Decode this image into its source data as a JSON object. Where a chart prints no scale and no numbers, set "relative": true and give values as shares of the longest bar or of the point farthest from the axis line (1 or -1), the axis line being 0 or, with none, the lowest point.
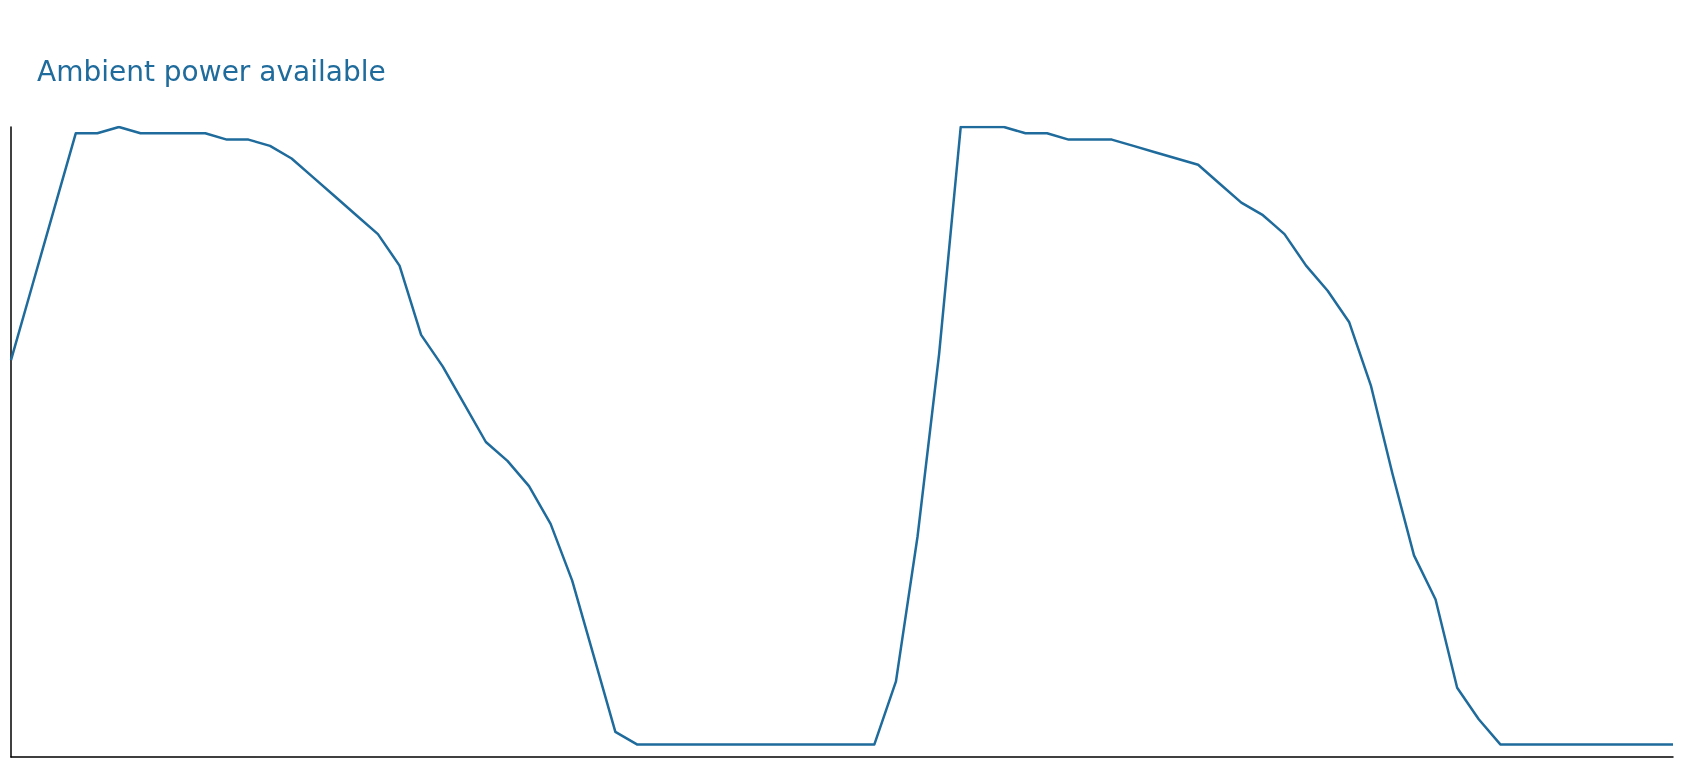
{
  "chart_data": {
    "type": "line",
    "title": "Ambient power available",
    "relative": true,
    "marker": "none",
    "categories": [
      null,
      null,
      null,
      null,
      null,
      null,
      null,
      null,
      null,
      null,
      null,
      null,
      null,
      null,
      null,
      null,
      null,
      null,
      null,
      null,
      null,
      null,
      null,
      null,
      null,
      null,
      null,
      null,
      null,
      null,
      null,
      null,
      null,
      null,
      null,
      null,
      null,
      null,
      null,
      null,
      null,
      null,
      null,
      null,
      null,
      null,
      null,
      null,
      null,
      null,
      null,
      null,
      null,
      null,
      null,
      null,
      null,
      null,
      null,
      null,
      null,
      null,
      null,
      null,
      null,
      null,
      null,
      null,
      null,
      null,
      null,
      null,
      null,
      null,
      null,
      null,
      null,
      null
    ],
    "series": [
      {
        "color": "#1f6b9c",
        "values": [
          0.63,
          0.75,
          0.87,
          0.99,
          0.99,
          1.0,
          0.99,
          0.99,
          0.99,
          0.99,
          0.98,
          0.98,
          0.97,
          0.95,
          0.92,
          0.89,
          0.86,
          0.83,
          0.78,
          0.67,
          0.62,
          0.56,
          0.5,
          0.47,
          0.43,
          0.37,
          0.28,
          0.16,
          0.04,
          0.02,
          0.02,
          0.02,
          0.02,
          0.02,
          0.02,
          0.02,
          0.02,
          0.02,
          0.02,
          0.02,
          0.02,
          0.12,
          0.35,
          0.64,
          1.0,
          1.0,
          1.0,
          0.99,
          0.99,
          0.98,
          0.98,
          0.98,
          0.97,
          0.96,
          0.95,
          0.94,
          0.91,
          0.88,
          0.86,
          0.83,
          0.78,
          0.74,
          0.69,
          0.59,
          0.45,
          0.32,
          0.25,
          0.11,
          0.06,
          0.02,
          0.02,
          0.02,
          0.02,
          0.02,
          0.02,
          0.02,
          0.02,
          0.02
        ]
      }
    ]
  }
}
